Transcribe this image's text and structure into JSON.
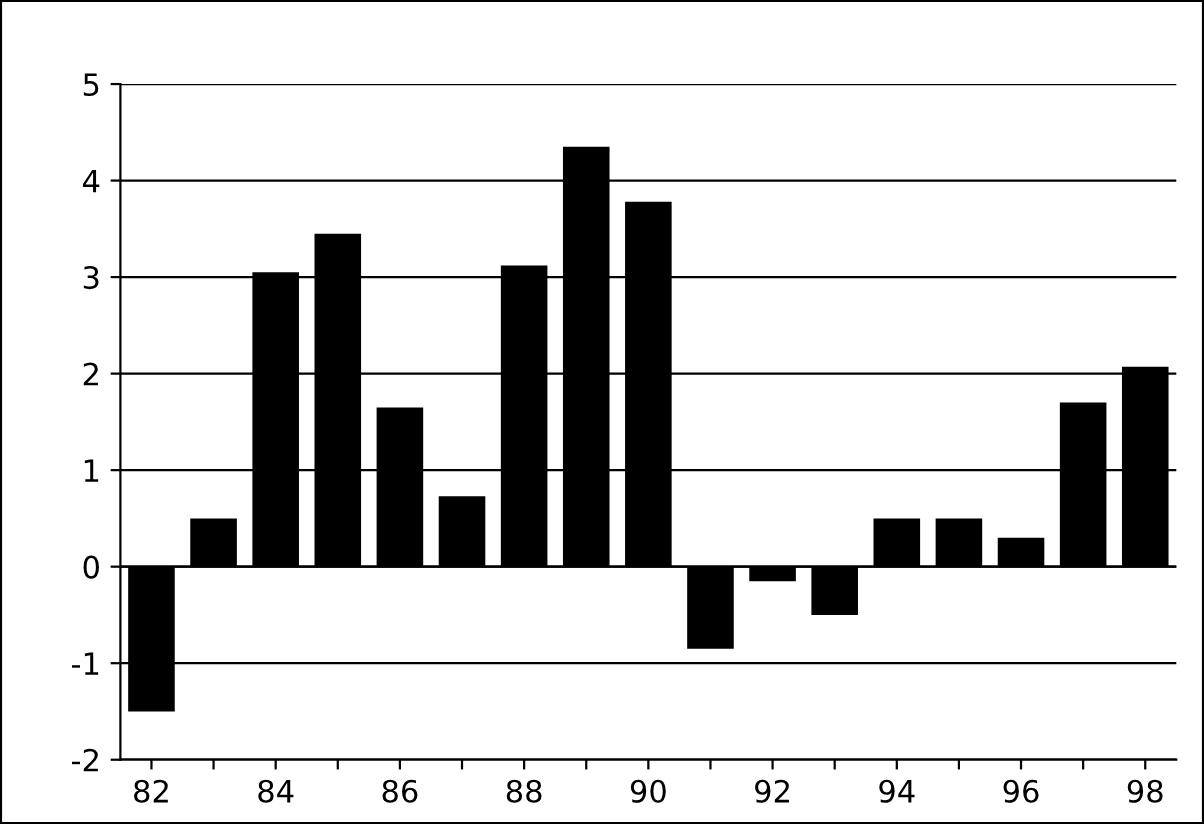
{
  "chart_data": {
    "type": "bar",
    "categories": [
      "82",
      null,
      "84",
      null,
      "86",
      null,
      "88",
      null,
      "90",
      null,
      "92",
      null,
      "94",
      null,
      "96",
      null,
      "98"
    ],
    "values": [
      -1.5,
      0.5,
      3.05,
      3.45,
      1.65,
      0.73,
      3.12,
      4.35,
      3.78,
      -0.85,
      -0.15,
      -0.5,
      0.5,
      0.5,
      0.3,
      1.7,
      2.07
    ],
    "color": "#000000",
    "ylim": [
      -2,
      5
    ],
    "yticks": [
      -2,
      -1,
      0,
      1,
      2,
      3,
      4,
      5
    ],
    "grid": "y"
  }
}
